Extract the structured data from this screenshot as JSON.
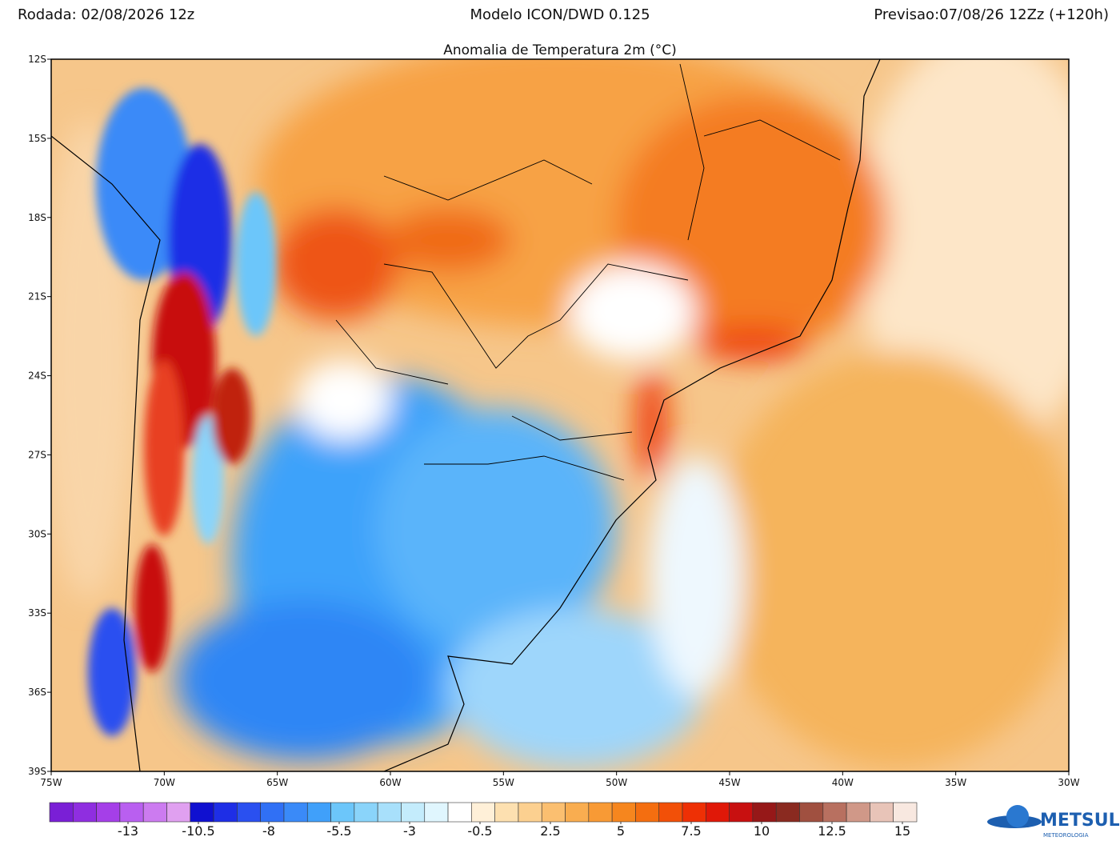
{
  "header": {
    "left": "Rodada: 02/08/2026 12z",
    "center": "Modelo ICON/DWD 0.125",
    "right": "Previsao:07/08/26 12Zz (+120h)"
  },
  "map": {
    "title": "Anomalia de Temperatura 2m (°C)",
    "xlim": [
      -75,
      -30
    ],
    "ylim": [
      -39,
      -12
    ],
    "xticks": [
      {
        "value": -75,
        "label": "75W"
      },
      {
        "value": -70,
        "label": "70W"
      },
      {
        "value": -65,
        "label": "65W"
      },
      {
        "value": -60,
        "label": "60W"
      },
      {
        "value": -55,
        "label": "55W"
      },
      {
        "value": -50,
        "label": "50W"
      },
      {
        "value": -45,
        "label": "45W"
      },
      {
        "value": -40,
        "label": "40W"
      },
      {
        "value": -35,
        "label": "35W"
      },
      {
        "value": -30,
        "label": "30W"
      }
    ],
    "yticks": [
      {
        "value": -12,
        "label": "12S"
      },
      {
        "value": -15,
        "label": "15S"
      },
      {
        "value": -18,
        "label": "18S"
      },
      {
        "value": -21,
        "label": "21S"
      },
      {
        "value": -24,
        "label": "24S"
      },
      {
        "value": -27,
        "label": "27S"
      },
      {
        "value": -30,
        "label": "30S"
      },
      {
        "value": -33,
        "label": "33S"
      },
      {
        "value": -36,
        "label": "36S"
      },
      {
        "value": -39,
        "label": "39S"
      }
    ]
  },
  "colorbar": {
    "ticks": [
      -13,
      -10.5,
      -8,
      -5.5,
      -3,
      -0.5,
      2.5,
      5,
      7.5,
      10,
      12.5,
      15
    ],
    "colors": [
      "#7a1fd6",
      "#8f2ee0",
      "#a53fe8",
      "#b95ff0",
      "#cc7bf0",
      "#e0a0f0",
      "#1010d0",
      "#1e2ee6",
      "#2a50f0",
      "#3070f5",
      "#3a8af8",
      "#40a0fa",
      "#6cc6fa",
      "#8ad4fa",
      "#a8e0fb",
      "#c4ecfc",
      "#e0f6fe",
      "#ffffff",
      "#fff0d8",
      "#fde0b0",
      "#fcd090",
      "#fbbf70",
      "#f9ad50",
      "#f89a35",
      "#f6861e",
      "#f46e10",
      "#f25008",
      "#ee3005",
      "#e01808",
      "#c81010",
      "#961818",
      "#8a2a20",
      "#a05040",
      "#b87060",
      "#d09888",
      "#e8c4b8",
      "#f8e8e0"
    ]
  },
  "logo": {
    "name": "METSUL",
    "sub": "METEOROLOGIA"
  }
}
